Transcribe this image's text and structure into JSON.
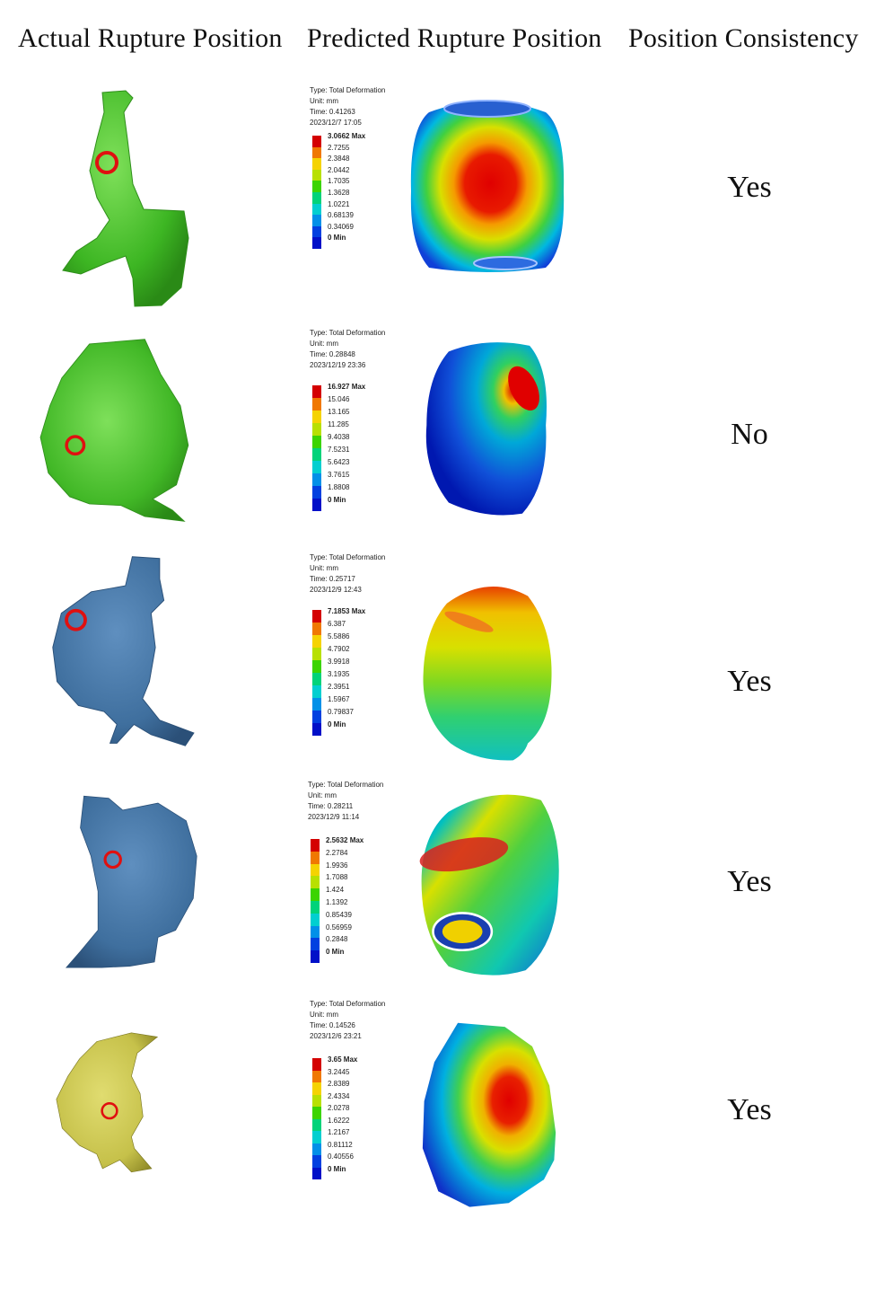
{
  "headers": {
    "actual": "Actual Rupture Position",
    "predicted": "Predicted Rupture Position",
    "consistency": "Position Consistency"
  },
  "colors": {
    "scale": [
      "#d40000",
      "#f07800",
      "#f5d300",
      "#b8e000",
      "#3cd400",
      "#00d37a",
      "#00cfd0",
      "#0090e8",
      "#0040e0",
      "#0010c8"
    ],
    "green_model": "#4fc82f",
    "blue_model": "#3f6f9e",
    "yellow_model": "#c6c14a",
    "marker": "#e01010"
  },
  "rows": [
    {
      "meta": [
        "Type: Total Deformation",
        "Unit: mm",
        "Time: 0.41263",
        "2023/12/7 17:05"
      ],
      "levels": [
        "3.0662 Max",
        "2.7255",
        "2.3848",
        "2.0442",
        "1.7035",
        "1.3628",
        "1.0221",
        "0.68139",
        "0.34069",
        "0 Min"
      ],
      "consistency": "Yes"
    },
    {
      "meta": [
        "Type: Total Deformation",
        "Unit: mm",
        "Time: 0.28848",
        "2023/12/19 23:36"
      ],
      "levels": [
        "16.927 Max",
        "15.046",
        "13.165",
        "11.285",
        "9.4038",
        "7.5231",
        "5.6423",
        "3.7615",
        "1.8808",
        "0 Min"
      ],
      "consistency": "No"
    },
    {
      "meta": [
        "Type: Total Deformation",
        "Unit: mm",
        "Time: 0.25717",
        "2023/12/9 12:43"
      ],
      "levels": [
        "7.1853 Max",
        "6.387",
        "5.5886",
        "4.7902",
        "3.9918",
        "3.1935",
        "2.3951",
        "1.5967",
        "0.79837",
        "0 Min"
      ],
      "consistency": "Yes"
    },
    {
      "meta": [
        "Type: Total Deformation",
        "Unit: mm",
        "Time: 0.28211",
        "2023/12/9 11:14"
      ],
      "levels": [
        "2.5632 Max",
        "2.2784",
        "1.9936",
        "1.7088",
        "1.424",
        "1.1392",
        "0.85439",
        "0.56959",
        "0.2848",
        "0 Min"
      ],
      "consistency": "Yes"
    },
    {
      "meta": [
        "Type: Total Deformation",
        "Unit: mm",
        "Time: 0.14526",
        "2023/12/6 23:21"
      ],
      "levels": [
        "3.65 Max",
        "3.2445",
        "2.8389",
        "2.4334",
        "2.0278",
        "1.6222",
        "1.2167",
        "0.81112",
        "0.40556",
        "0 Min"
      ],
      "consistency": "Yes"
    }
  ]
}
